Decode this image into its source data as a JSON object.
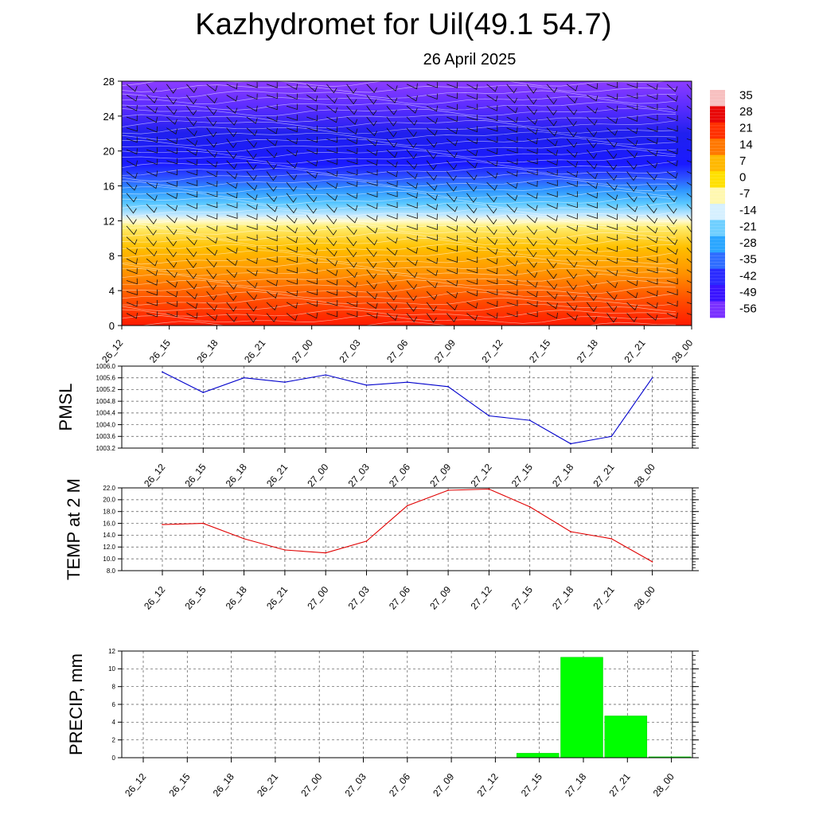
{
  "header": {
    "title": "Kazhydromet for Uil(49.1 54.7)",
    "subtitle": "26 April 2025"
  },
  "chart_data": [
    {
      "type": "heatmap",
      "title": "",
      "x_tick_labels": [
        "26_12",
        "26_15",
        "26_18",
        "26_21",
        "27_00",
        "27_03",
        "27_06",
        "27_09",
        "27_12",
        "27_15",
        "27_18",
        "27_21",
        "28_00"
      ],
      "y_ticks": [
        "0",
        "4",
        "8",
        "12",
        "16",
        "20",
        "24",
        "28"
      ],
      "ylim": [
        0,
        28
      ],
      "colorbar_labels": [
        "35",
        "28",
        "21",
        "14",
        "7",
        "0",
        "-7",
        "-14",
        "-21",
        "-28",
        "-35",
        "-42",
        "-49",
        "-56"
      ],
      "colors": [
        "#f5f5f5",
        "#f01818",
        "#ff4800",
        "#ff9a00",
        "#ffd200",
        "#fff5a0",
        "#bfe7ff",
        "#3fc1ff",
        "#4d88ff",
        "#2626ff",
        "#6a2cff",
        "#8a44ff"
      ],
      "temperature_profile": [
        {
          "level": 0,
          "value": 33
        },
        {
          "level": 3,
          "value": 22
        },
        {
          "level": 6,
          "value": 10
        },
        {
          "level": 9,
          "value": 0
        },
        {
          "level": 11.5,
          "value": -8
        },
        {
          "level": 12.5,
          "value": -18
        },
        {
          "level": 14.5,
          "value": -30
        },
        {
          "level": 17,
          "value": -45
        },
        {
          "level": 20,
          "value": -58
        },
        {
          "level": 24,
          "value": -55
        },
        {
          "level": 28,
          "value": -50
        }
      ],
      "wind_barbs": true,
      "grid": false
    },
    {
      "type": "line",
      "ylabel": "PMSL",
      "categories": [
        "26_12",
        "26_15",
        "26_18",
        "26_21",
        "27_00",
        "27_03",
        "27_06",
        "27_09",
        "27_12",
        "27_15",
        "27_18",
        "27_21",
        "28_00"
      ],
      "values": [
        1005.8,
        1005.1,
        1005.6,
        1005.45,
        1005.7,
        1005.35,
        1005.45,
        1005.3,
        1004.3,
        1004.15,
        1003.35,
        1003.6,
        1005.6
      ],
      "ylim": [
        1003.2,
        1006.0
      ],
      "y_tick_labels": [
        "1003.2",
        "1003.6",
        "1004.0",
        "1004.4",
        "1004.8",
        "1005.2",
        "1005.6",
        "1006.0"
      ],
      "color": "#0000cc",
      "grid": true
    },
    {
      "type": "line",
      "ylabel": "TEMP at 2 M",
      "categories": [
        "26_12",
        "26_15",
        "26_18",
        "26_21",
        "27_00",
        "27_03",
        "27_06",
        "27_09",
        "27_12",
        "27_15",
        "27_18",
        "27_21",
        "28_00"
      ],
      "values": [
        15.8,
        16.0,
        13.4,
        11.5,
        11.0,
        13.0,
        19.0,
        21.6,
        21.8,
        18.8,
        14.6,
        13.4,
        9.5
      ],
      "ylim": [
        8.0,
        22.0
      ],
      "y_tick_labels": [
        "8.0",
        "10.0",
        "12.0",
        "14.0",
        "16.0",
        "18.0",
        "20.0",
        "22.0"
      ],
      "color": "#e00000",
      "grid": true
    },
    {
      "type": "bar",
      "ylabel": "PRECIP, mm",
      "categories": [
        "26_12",
        "26_15",
        "26_18",
        "26_21",
        "27_00",
        "27_03",
        "27_06",
        "27_09",
        "27_12",
        "27_15",
        "27_18",
        "27_21",
        "28_00"
      ],
      "values": [
        0,
        0,
        0,
        0,
        0,
        0,
        0,
        0,
        0,
        0.5,
        11.3,
        4.7,
        0.1
      ],
      "ylim": [
        0,
        12
      ],
      "y_tick_labels": [
        "0",
        "2",
        "4",
        "6",
        "8",
        "10",
        "12"
      ],
      "color": "#00ff00",
      "grid": true
    }
  ]
}
